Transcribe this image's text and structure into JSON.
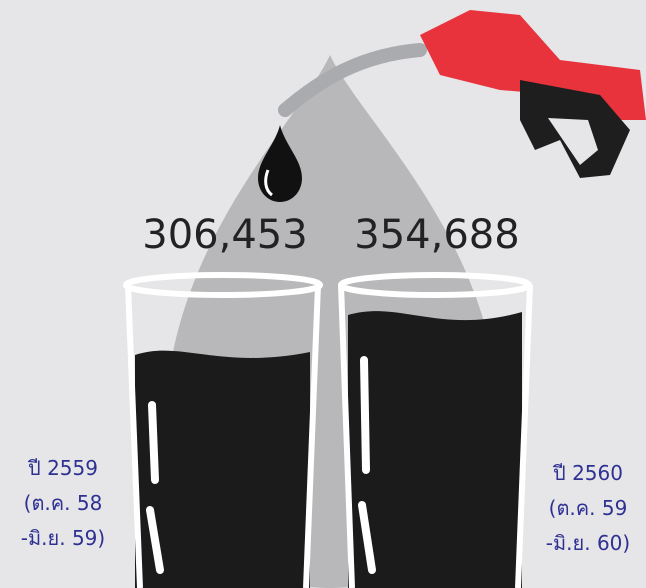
{
  "items": [
    {
      "value": "306,453",
      "period": [
        "ปี 2559",
        "(ต.ค. 58",
        "-มิ.ย. 59)"
      ]
    },
    {
      "value": "354,688",
      "period": [
        "ปี 2560",
        "(ต.ค. 59",
        "-มิ.ย. 60)"
      ]
    }
  ]
}
